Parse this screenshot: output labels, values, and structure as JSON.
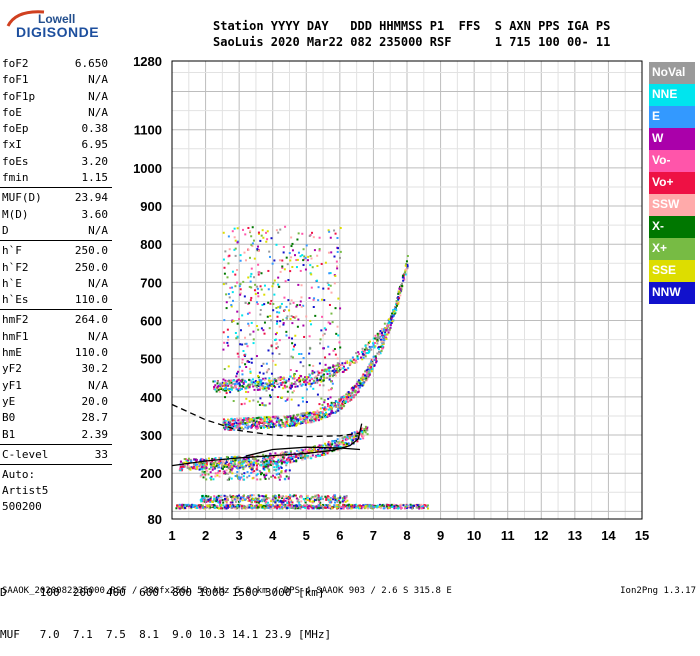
{
  "logo": {
    "top": "Lowell",
    "bottom": "DIGISONDE"
  },
  "header": {
    "line1": "Station YYYY DAY   DDD HHMMSS P1  FFS  S AXN PPS IGA PS",
    "line2": "SaoLuis 2020 Mar22 082 235000 RSF      1 715 100 00- 11"
  },
  "params": [
    {
      "name": "foF2",
      "value": "6.650"
    },
    {
      "name": "foF1",
      "value": "N/A"
    },
    {
      "name": "foF1p",
      "value": "N/A"
    },
    {
      "name": "foE",
      "value": "N/A"
    },
    {
      "name": "foEp",
      "value": "0.38"
    },
    {
      "name": "fxI",
      "value": "6.95"
    },
    {
      "name": "foEs",
      "value": "3.20"
    },
    {
      "name": "fmin",
      "value": "1.15"
    },
    {
      "sep": true
    },
    {
      "name": "MUF(D)",
      "value": "23.94"
    },
    {
      "name": "M(D)",
      "value": "3.60"
    },
    {
      "name": "D",
      "value": "N/A"
    },
    {
      "sep": true
    },
    {
      "name": "h`F",
      "value": "250.0"
    },
    {
      "name": "h`F2",
      "value": "250.0"
    },
    {
      "name": "h`E",
      "value": "N/A"
    },
    {
      "name": "h`Es",
      "value": "110.0"
    },
    {
      "sep": true
    },
    {
      "name": "hmF2",
      "value": "264.0"
    },
    {
      "name": "hmF1",
      "value": "N/A"
    },
    {
      "name": "hmE",
      "value": "110.0"
    },
    {
      "name": "yF2",
      "value": "30.2"
    },
    {
      "name": "yF1",
      "value": "N/A"
    },
    {
      "name": "yE",
      "value": "20.0"
    },
    {
      "name": "B0",
      "value": "28.7"
    },
    {
      "name": "B1",
      "value": "2.39"
    },
    {
      "sep": true
    },
    {
      "name": "C-level",
      "value": "33"
    },
    {
      "sep": true
    }
  ],
  "params_bottom": [
    "Auto:",
    "Artist5",
    "500200"
  ],
  "legend": [
    {
      "label": "NoVal",
      "color": "#9a9a9a"
    },
    {
      "label": "NNE",
      "color": "#00e5ee"
    },
    {
      "label": "E",
      "color": "#3399ff"
    },
    {
      "label": "W",
      "color": "#aa00aa"
    },
    {
      "label": "Vo-",
      "color": "#ff55aa"
    },
    {
      "label": "Vo+",
      "color": "#ee1144"
    },
    {
      "label": "SSW",
      "color": "#ffaaaa"
    },
    {
      "label": "X-",
      "color": "#007700"
    },
    {
      "label": "X+",
      "color": "#77bb44"
    },
    {
      "label": "SSE",
      "color": "#dddd00"
    },
    {
      "label": "NNW",
      "color": "#1111cc"
    }
  ],
  "muf_table": {
    "line1": "D     100  200  400  600  800 1000 1500 3000 [km]",
    "line2": "MUF   7.0  7.1  7.5  8.1  9.0 10.3 14.1 23.9 [MHz]"
  },
  "footer": {
    "left": "SAAOK_2020082235000.RSF / 280fx256h 50 kHz 5.0 km / DPS-4 SAAOK 903 / 2.6 S 315.8 E",
    "right": "Ion2Png 1.3.17"
  },
  "chart_data": {
    "type": "scatter",
    "xlim": [
      1,
      15
    ],
    "ylim": [
      80,
      1280
    ],
    "x_ticks": [
      1,
      2,
      3,
      4,
      5,
      6,
      7,
      8,
      9,
      10,
      11,
      12,
      13,
      14,
      15
    ],
    "y_ticks": [
      80,
      200,
      300,
      400,
      500,
      600,
      700,
      800,
      900,
      1000,
      1100,
      1280
    ],
    "grid": true,
    "legend_position": "right",
    "traces": [
      {
        "kind": "dashed",
        "points": [
          [
            1,
            380
          ],
          [
            2,
            340
          ],
          [
            3,
            312
          ],
          [
            4,
            300
          ],
          [
            5,
            296
          ],
          [
            6,
            298
          ],
          [
            6.6,
            305
          ]
        ]
      },
      {
        "kind": "solid",
        "points": [
          [
            1,
            220
          ],
          [
            2,
            232
          ],
          [
            3,
            240
          ],
          [
            4,
            246
          ],
          [
            5,
            252
          ],
          [
            5.8,
            260
          ],
          [
            6.3,
            272
          ],
          [
            6.55,
            290
          ],
          [
            6.65,
            330
          ]
        ]
      },
      {
        "kind": "solid",
        "points": [
          [
            3.2,
            245
          ],
          [
            4,
            262
          ],
          [
            5,
            268
          ],
          [
            6,
            266
          ],
          [
            6.6,
            262
          ]
        ]
      }
    ],
    "echo_bands": [
      {
        "f": [
          1.2,
          6.8
        ],
        "h": [
          225,
          295
        ],
        "n": 700,
        "curve": 0.9
      },
      {
        "f": [
          2.5,
          8.0
        ],
        "h": [
          330,
          740
        ],
        "n": 900,
        "curve": 2.0
      },
      {
        "f": [
          2.2,
          7.6
        ],
        "h": [
          430,
          600
        ],
        "n": 500,
        "curve": 1.6
      },
      {
        "f": [
          1.1,
          8.6
        ],
        "h": [
          110,
          120
        ],
        "n": 700,
        "curve": 0
      },
      {
        "f": [
          1.8,
          6.2
        ],
        "h": [
          125,
          145
        ],
        "n": 350,
        "curve": 0
      },
      {
        "f": [
          2.5,
          6.0
        ],
        "h": [
          380,
          850
        ],
        "n": 550,
        "curve": 0
      },
      {
        "f": [
          1.8,
          4.5
        ],
        "h": [
          185,
          240
        ],
        "n": 250,
        "curve": 0
      }
    ]
  }
}
